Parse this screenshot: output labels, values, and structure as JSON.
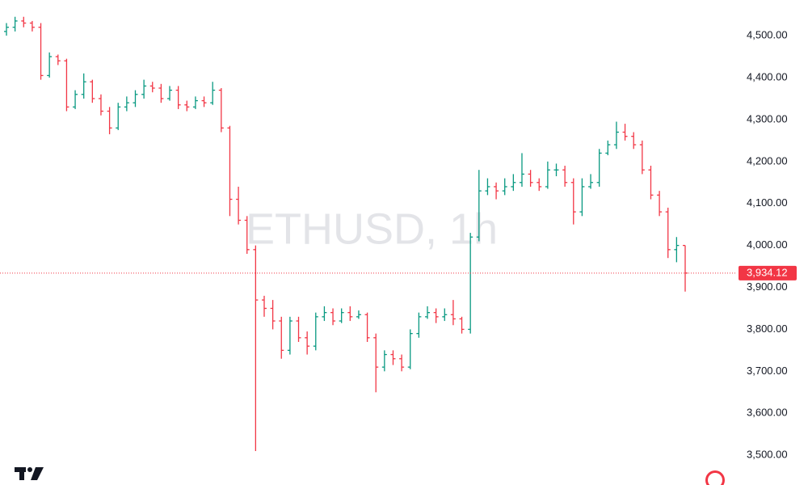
{
  "chart_data": {
    "type": "ohlc",
    "title": "ETHUSD, 1h",
    "open": [
      4510,
      4520,
      4535,
      4530,
      4520,
      4405,
      4450,
      4440,
      4330,
      4360,
      4390,
      4350,
      4320,
      4280,
      4330,
      4340,
      4360,
      4380,
      4375,
      4350,
      4370,
      4335,
      4330,
      4345,
      4340,
      4370,
      4280,
      4110,
      4060,
      3990,
      3870,
      3850,
      3820,
      3750,
      3820,
      3780,
      3760,
      3830,
      3840,
      3820,
      3840,
      3830,
      3835,
      3780,
      3710,
      3740,
      3730,
      3710,
      3790,
      3830,
      3840,
      3830,
      3835,
      3825,
      3800,
      4020,
      4130,
      4140,
      4130,
      4140,
      4150,
      4170,
      4150,
      4140,
      4180,
      4180,
      4150,
      4080,
      4140,
      4150,
      4220,
      4240,
      4270,
      4260,
      4240,
      4180,
      4120,
      4080,
      3990,
      4000
    ],
    "high": [
      4530,
      4545,
      4545,
      4535,
      4530,
      4460,
      4455,
      4445,
      4370,
      4410,
      4395,
      4360,
      4330,
      4340,
      4355,
      4370,
      4395,
      4390,
      4385,
      4380,
      4380,
      4345,
      4355,
      4355,
      4390,
      4375,
      4285,
      4140,
      4070,
      4000,
      3880,
      3870,
      3830,
      3830,
      3830,
      3795,
      3840,
      3855,
      3850,
      3850,
      3855,
      3845,
      3840,
      3790,
      3750,
      3750,
      3740,
      3800,
      3840,
      3855,
      3850,
      3850,
      3870,
      3830,
      4030,
      4180,
      4160,
      4150,
      4160,
      4170,
      4220,
      4180,
      4160,
      4200,
      4195,
      4190,
      4160,
      4160,
      4170,
      4230,
      4250,
      4295,
      4290,
      4270,
      4250,
      4190,
      4130,
      4090,
      4020,
      4000
    ],
    "low": [
      4500,
      4510,
      4520,
      4510,
      4395,
      4400,
      4430,
      4320,
      4325,
      4350,
      4340,
      4310,
      4265,
      4275,
      4320,
      4330,
      4350,
      4365,
      4340,
      4345,
      4325,
      4320,
      4325,
      4330,
      4335,
      4270,
      4070,
      4050,
      3980,
      3510,
      3830,
      3800,
      3730,
      3740,
      3770,
      3740,
      3750,
      3820,
      3810,
      3815,
      3820,
      3825,
      3770,
      3650,
      3700,
      3715,
      3700,
      3705,
      3780,
      3825,
      3815,
      3820,
      3810,
      3790,
      3790,
      4010,
      4120,
      4110,
      4120,
      4130,
      4140,
      4140,
      4130,
      4135,
      4165,
      4140,
      4050,
      4070,
      4135,
      4140,
      4215,
      4230,
      4250,
      4230,
      4170,
      4110,
      4070,
      3970,
      3960,
      3890
    ],
    "close": [
      4520,
      4535,
      4530,
      4520,
      4405,
      4450,
      4440,
      4330,
      4360,
      4390,
      4350,
      4320,
      4280,
      4330,
      4340,
      4360,
      4380,
      4375,
      4350,
      4370,
      4335,
      4330,
      4345,
      4340,
      4370,
      4280,
      4110,
      4060,
      3990,
      3870,
      3850,
      3820,
      3750,
      3820,
      3780,
      3760,
      3830,
      3840,
      3820,
      3840,
      3830,
      3835,
      3780,
      3710,
      3740,
      3730,
      3710,
      3790,
      3830,
      3840,
      3830,
      3835,
      3825,
      3800,
      4020,
      4130,
      4140,
      4130,
      4140,
      4150,
      4170,
      4150,
      4140,
      4180,
      4180,
      4150,
      4080,
      4140,
      4150,
      4220,
      4240,
      4270,
      4260,
      4240,
      4180,
      4120,
      4080,
      3990,
      4000,
      3934.12
    ],
    "up_color": "#089981",
    "down_color": "#f23645",
    "ylim": [
      3429,
      4585
    ],
    "yticks": [
      {
        "value": 3500,
        "label": "3,500.00"
      },
      {
        "value": 3600,
        "label": "3,600.00"
      },
      {
        "value": 3700,
        "label": "3,700.00"
      },
      {
        "value": 3800,
        "label": "3,800.00"
      },
      {
        "value": 3900,
        "label": "3,900.00"
      },
      {
        "value": 4000,
        "label": "4,000.00"
      },
      {
        "value": 4100,
        "label": "4,100.00"
      },
      {
        "value": 4200,
        "label": "4,200.00"
      },
      {
        "value": 4300,
        "label": "4,300.00"
      },
      {
        "value": 4400,
        "label": "4,400.00"
      },
      {
        "value": 4500,
        "label": "4,500.00"
      }
    ],
    "last_price": {
      "value": 3934.12,
      "label": "3,934.12"
    }
  }
}
